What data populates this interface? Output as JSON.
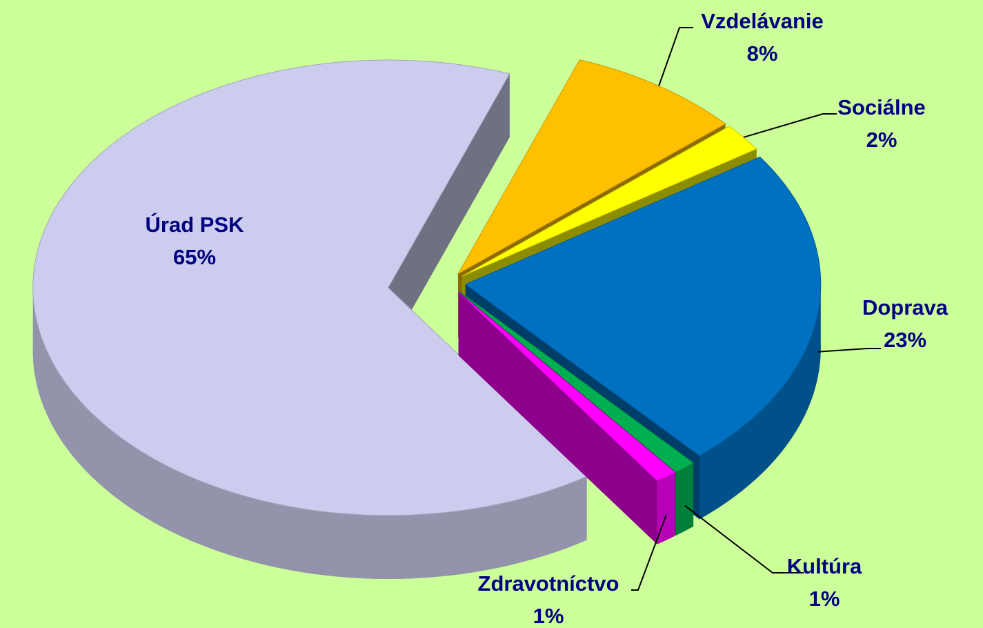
{
  "chart_data": {
    "type": "pie",
    "categories": [
      "Úrad PSK",
      "Vzdelávanie",
      "Sociálne",
      "Doprava",
      "Kultúra",
      "Zdravotníctvo"
    ],
    "values": [
      65,
      8,
      2,
      23,
      1,
      1
    ],
    "value_labels": [
      "65%",
      "8%",
      "2%",
      "23%",
      "1%",
      "1%"
    ],
    "colors": [
      "#ccccee",
      "#ffc000",
      "#ffff00",
      "#0070c0",
      "#00b050",
      "#ff00ff"
    ]
  }
}
